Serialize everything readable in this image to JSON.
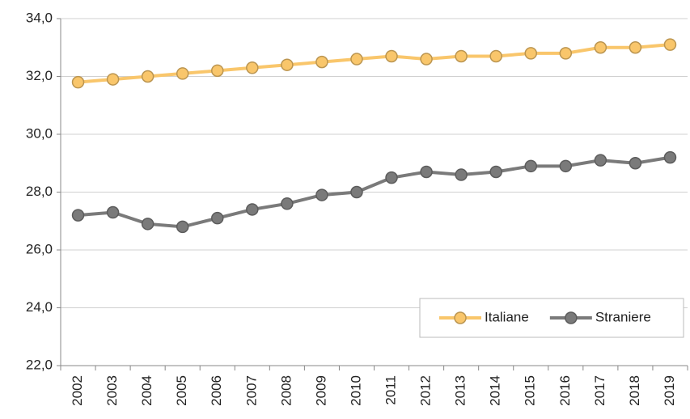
{
  "chart_data": {
    "type": "line",
    "categories": [
      "2002",
      "2003",
      "2004",
      "2005",
      "2006",
      "2007",
      "2008",
      "2009",
      "2010",
      "2011",
      "2012",
      "2013",
      "2014",
      "2015",
      "2016",
      "2017",
      "2018",
      "2019"
    ],
    "series": [
      {
        "name": "Italiane",
        "color": "#f9c66b",
        "values": [
          31.8,
          31.9,
          32.0,
          32.1,
          32.2,
          32.3,
          32.4,
          32.5,
          32.6,
          32.7,
          32.6,
          32.7,
          32.7,
          32.8,
          32.8,
          33.0,
          33.0,
          33.1
        ]
      },
      {
        "name": "Straniere",
        "color": "#7a7a7a",
        "values": [
          27.2,
          27.3,
          26.9,
          26.8,
          27.1,
          27.4,
          27.6,
          27.9,
          28.0,
          28.5,
          28.7,
          28.6,
          28.7,
          28.9,
          28.9,
          29.1,
          29.0,
          29.2
        ]
      }
    ],
    "ylim": [
      22,
      34
    ],
    "yticks": [
      {
        "value": 22,
        "label": "22,0"
      },
      {
        "value": 24,
        "label": "24,0"
      },
      {
        "value": 26,
        "label": "26,0"
      },
      {
        "value": 28,
        "label": "28,0"
      },
      {
        "value": 30,
        "label": "30,0"
      },
      {
        "value": 32,
        "label": "32,0"
      },
      {
        "value": 34,
        "label": "34,0"
      }
    ],
    "grid": true,
    "legend": "lower right"
  }
}
